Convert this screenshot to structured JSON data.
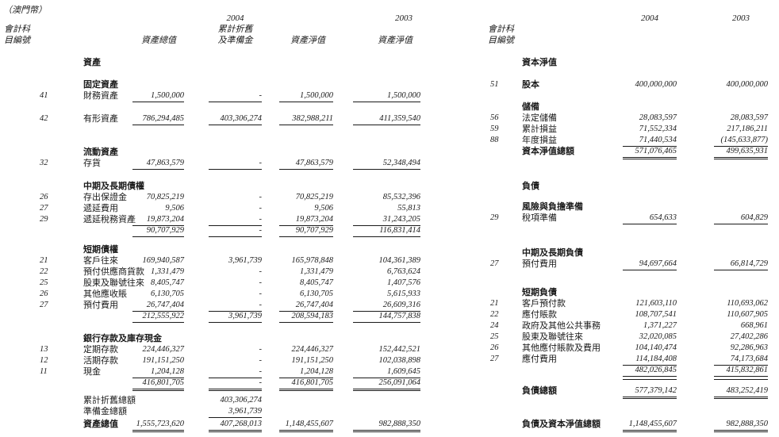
{
  "page": {
    "currency_note": "（澳門幣）"
  },
  "left_table": {
    "header": {
      "acct_line1": "會計科",
      "acct_line2": "目編號",
      "col_gross": "資產總值",
      "year_2004": "2004",
      "col_dep_line1": "累計折舊",
      "col_dep_line2": "及準備金",
      "col_net_2004": "資產淨值",
      "year_2003": "2003",
      "col_net_2003": "資產淨值"
    },
    "rows": [
      {
        "t": "title",
        "label": "資產",
        "mt": 6
      },
      {
        "t": "section",
        "label": "固定資產",
        "mt": 14
      },
      {
        "t": "item",
        "acct": "41",
        "label": "財務資產",
        "v": [
          "1,500,000",
          "-",
          "1,500,000",
          "1,500,000"
        ],
        "u": [
          0,
          1,
          2,
          3
        ]
      },
      {
        "t": "item",
        "acct": "42",
        "label": "有形資產",
        "v": [
          "786,294,485",
          "403,306,274",
          "382,988,211",
          "411,359,540"
        ],
        "u": [
          0,
          1,
          2,
          3
        ],
        "mt": 15
      },
      {
        "t": "section",
        "label": "流動資產",
        "mt": 28
      },
      {
        "t": "item",
        "acct": "32",
        "label": "存貨",
        "v": [
          "47,863,579",
          "-",
          "47,863,579",
          "52,348,494"
        ],
        "u": [
          0,
          1,
          2,
          3
        ]
      },
      {
        "t": "section",
        "label": "中期及長期債權",
        "mt": 15
      },
      {
        "t": "item",
        "acct": "26",
        "label": "存出保證金",
        "v": [
          "70,825,219",
          "-",
          "70,825,219",
          "85,532,396"
        ]
      },
      {
        "t": "item",
        "acct": "27",
        "label": "遞延費用",
        "v": [
          "9,506",
          "-",
          "9,506",
          "55,813"
        ]
      },
      {
        "t": "item",
        "acct": "29",
        "label": "遞延稅務資產",
        "v": [
          "19,873,204",
          "-",
          "19,873,204",
          "31,243,205"
        ],
        "u": [
          0,
          1,
          2,
          3
        ]
      },
      {
        "t": "subtotal",
        "v": [
          "90,707,929",
          "-",
          "90,707,929",
          "116,831,414"
        ],
        "u": [
          0,
          1,
          2,
          3
        ]
      },
      {
        "t": "section",
        "label": "短期債權",
        "mt": 10
      },
      {
        "t": "item",
        "acct": "21",
        "label": "客戶往來",
        "v": [
          "169,940,587",
          "3,961,739",
          "165,978,848",
          "104,361,389"
        ]
      },
      {
        "t": "item",
        "acct": "22",
        "label": "預付供應商貨款",
        "v": [
          "1,331,479",
          "-",
          "1,331,479",
          "6,763,624"
        ]
      },
      {
        "t": "item",
        "acct": "25",
        "label": "股東及聯號往來",
        "v": [
          "8,405,747",
          "-",
          "8,405,747",
          "1,407,576"
        ]
      },
      {
        "t": "item",
        "acct": "26",
        "label": "其他應收賬",
        "v": [
          "6,130,705",
          "-",
          "6,130,705",
          "5,615,933"
        ]
      },
      {
        "t": "item",
        "acct": "27",
        "label": "預付費用",
        "v": [
          "26,747,404",
          "-",
          "26,747,404",
          "26,609,316"
        ],
        "u": [
          0,
          1,
          2,
          3
        ]
      },
      {
        "t": "subtotal",
        "v": [
          "212,555,922",
          "3,961,739",
          "208,594,183",
          "144,757,838"
        ],
        "u": [
          0,
          1,
          2,
          3
        ]
      },
      {
        "t": "section",
        "label": "銀行存款及庫存現金",
        "mt": 14
      },
      {
        "t": "item",
        "acct": "13",
        "label": "定期存款",
        "v": [
          "224,446,327",
          "-",
          "224,446,327",
          "152,442,521"
        ]
      },
      {
        "t": "item",
        "acct": "12",
        "label": "活期存款",
        "v": [
          "191,151,250",
          "-",
          "191,151,250",
          "102,038,898"
        ]
      },
      {
        "t": "item",
        "acct": "11",
        "label": "現金",
        "v": [
          "1,204,128",
          "-",
          "1,204,128",
          "1,609,645"
        ],
        "u": [
          0,
          1,
          2,
          3
        ]
      },
      {
        "t": "subtotal",
        "v": [
          "416,801,705",
          "-",
          "416,801,705",
          "256,091,064"
        ],
        "u": [
          0,
          1,
          2,
          3
        ]
      },
      {
        "t": "rule",
        "mt": 2
      },
      {
        "t": "note",
        "label": "累計折舊總額",
        "v": [
          "",
          "403,306,274",
          "",
          ""
        ],
        "mt": 6
      },
      {
        "t": "note",
        "label": "準備金總額",
        "v": [
          "",
          "3,961,739",
          "",
          ""
        ],
        "u": [
          1
        ]
      },
      {
        "t": "total",
        "label": "資產總值",
        "v": [
          "1,555,723,620",
          "407,268,013",
          "1,148,455,607",
          "982,888,350"
        ],
        "uu": [
          0,
          1,
          2,
          3
        ],
        "mt": 2
      }
    ]
  },
  "right_table": {
    "header": {
      "acct_line1": "會計科",
      "acct_line2": "目編號",
      "year_2004": "2004",
      "year_2003": "2003"
    },
    "rows": [
      {
        "t": "title",
        "label": "資本淨值",
        "mt": 6
      },
      {
        "t": "item",
        "acct": "51",
        "label": "股本",
        "bold": true,
        "v": [
          "400,000,000",
          "400,000,000"
        ],
        "mt": 14
      },
      {
        "t": "section",
        "label": "儲備",
        "mt": 14
      },
      {
        "t": "item",
        "acct": "56",
        "label": "法定儲備",
        "v": [
          "28,083,597",
          "28,083,597"
        ]
      },
      {
        "t": "item",
        "acct": "59",
        "label": "累計損益",
        "v": [
          "71,552,334",
          "217,186,211"
        ]
      },
      {
        "t": "item",
        "acct": "88",
        "label": "年度損益",
        "v": [
          "71,440,534",
          "(145,633,877)"
        ],
        "u": [
          0,
          1
        ]
      },
      {
        "t": "total",
        "label": "資本淨值總額",
        "v": [
          "571,076,465",
          "499,635,931"
        ],
        "uu": [
          0,
          1
        ]
      },
      {
        "t": "title",
        "label": "負債",
        "mt": 30
      },
      {
        "t": "section",
        "label": "風險與負擔準備",
        "mt": 12
      },
      {
        "t": "item",
        "acct": "29",
        "label": "稅項準備",
        "v": [
          "654,633",
          "604,829"
        ],
        "u": [
          0,
          1
        ]
      },
      {
        "t": "section",
        "label": "中期及長期負債",
        "mt": 30
      },
      {
        "t": "item",
        "acct": "27",
        "label": "預付費用",
        "v": [
          "94,697,664",
          "66,814,729"
        ],
        "u": [
          0,
          1
        ]
      },
      {
        "t": "section",
        "label": "短期負債",
        "mt": 22
      },
      {
        "t": "item",
        "acct": "21",
        "label": "客戶預付款",
        "v": [
          "121,603,110",
          "110,693,062"
        ]
      },
      {
        "t": "item",
        "acct": "22",
        "label": "應付賬款",
        "v": [
          "108,707,541",
          "110,607,905"
        ]
      },
      {
        "t": "item",
        "acct": "24",
        "label": "政府及其他公共事務",
        "v": [
          "1,371,227",
          "668,961"
        ]
      },
      {
        "t": "item",
        "acct": "25",
        "label": "股東及聯號往來",
        "v": [
          "32,020,085",
          "27,402,286"
        ]
      },
      {
        "t": "item",
        "acct": "26",
        "label": "其他應付賬款及費用",
        "v": [
          "104,140,474",
          "92,286,963"
        ]
      },
      {
        "t": "item",
        "acct": "27",
        "label": "應付費用",
        "v": [
          "114,184,408",
          "74,173,684"
        ],
        "u": [
          0,
          1
        ]
      },
      {
        "t": "subtotal",
        "v": [
          "482,026,845",
          "415,832,861"
        ],
        "u": [
          0,
          1
        ]
      },
      {
        "t": "rule",
        "mt": 4
      },
      {
        "t": "total",
        "label": "負債總額",
        "v": [
          "577,379,142",
          "483,252,419"
        ],
        "uu": [
          0,
          1
        ],
        "mt": 8
      },
      {
        "t": "total",
        "label": "負債及資本淨值總額",
        "v": [
          "1,148,455,607",
          "982,888,350"
        ],
        "uu": [
          0,
          1
        ],
        "mt": 28
      }
    ]
  }
}
